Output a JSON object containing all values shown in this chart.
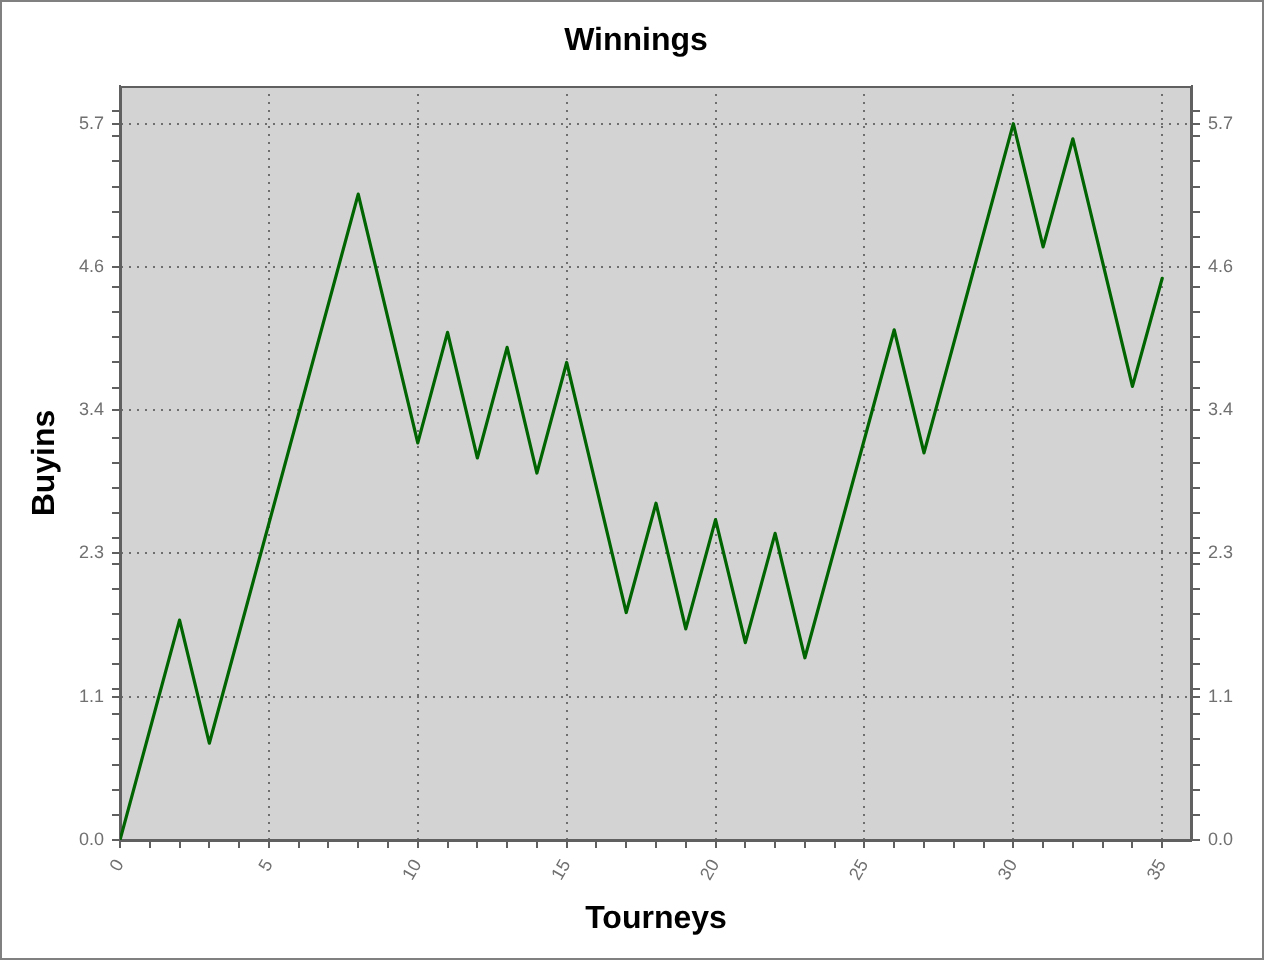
{
  "chart_data": {
    "type": "line",
    "title": "Winnings",
    "xlabel": "Tourneys",
    "ylabel": "Buyins",
    "x": [
      0,
      2,
      3,
      8,
      10,
      11,
      12,
      13,
      14,
      15,
      17,
      18,
      19,
      20,
      21,
      22,
      23,
      26,
      27,
      30,
      31,
      32,
      34,
      35
    ],
    "series": [
      {
        "color": "#006400",
        "values": [
          0,
          1.75,
          0.77,
          5.14,
          3.16,
          4.04,
          3.04,
          3.92,
          2.92,
          3.8,
          1.81,
          2.68,
          1.68,
          2.55,
          1.57,
          2.44,
          1.45,
          4.06,
          3.08,
          5.7,
          4.72,
          5.58,
          3.61,
          4.47
        ]
      }
    ],
    "xlim": [
      0,
      36
    ],
    "xticks": [
      0,
      {
        "value": 1,
        "label": null
      },
      {
        "value": 2,
        "label": null
      },
      {
        "value": 3,
        "label": null
      },
      {
        "value": 4,
        "label": null
      },
      5,
      {
        "value": 6,
        "label": null
      },
      {
        "value": 7,
        "label": null
      },
      {
        "value": 8,
        "label": null
      },
      {
        "value": 9,
        "label": null
      },
      10,
      {
        "value": 11,
        "label": null
      },
      {
        "value": 12,
        "label": null
      },
      {
        "value": 13,
        "label": null
      },
      {
        "value": 14,
        "label": null
      },
      15,
      {
        "value": 16,
        "label": null
      },
      {
        "value": 17,
        "label": null
      },
      {
        "value": 18,
        "label": null
      },
      {
        "value": 19,
        "label": null
      },
      20,
      {
        "value": 21,
        "label": null
      },
      {
        "value": 22,
        "label": null
      },
      {
        "value": 23,
        "label": null
      },
      {
        "value": 24,
        "label": null
      },
      25,
      {
        "value": 26,
        "label": null
      },
      {
        "value": 27,
        "label": null
      },
      {
        "value": 28,
        "label": null
      },
      {
        "value": 29,
        "label": null
      },
      30,
      {
        "value": 31,
        "label": null
      },
      {
        "value": 32,
        "label": null
      },
      {
        "value": 33,
        "label": null
      },
      {
        "value": 34,
        "label": null
      },
      35
    ],
    "ylim": [
      0,
      6
    ],
    "yticks": [
      {
        "value": 0,
        "label": "0.0"
      },
      {
        "value": 0.2,
        "label": null
      },
      {
        "value": 0.4,
        "label": null
      },
      {
        "value": 0.6,
        "label": null
      },
      {
        "value": 0.8,
        "label": null
      },
      {
        "value": 1,
        "label": null
      },
      {
        "value": 1.14,
        "label": "1.1"
      },
      {
        "value": 1.2,
        "label": null
      },
      {
        "value": 1.4,
        "label": null
      },
      {
        "value": 1.6,
        "label": null
      },
      {
        "value": 1.8,
        "label": null
      },
      {
        "value": 2,
        "label": null
      },
      {
        "value": 2.2,
        "label": null
      },
      {
        "value": 2.28,
        "label": "2.3"
      },
      {
        "value": 2.4,
        "label": null
      },
      {
        "value": 2.6,
        "label": null
      },
      {
        "value": 2.8,
        "label": null
      },
      {
        "value": 3,
        "label": null
      },
      {
        "value": 3.2,
        "label": null
      },
      {
        "value": 3.42,
        "label": "3.4"
      },
      {
        "value": 3.6,
        "label": null
      },
      {
        "value": 3.8,
        "label": null
      },
      {
        "value": 4,
        "label": null
      },
      {
        "value": 4.2,
        "label": null
      },
      {
        "value": 4.4,
        "label": null
      },
      {
        "value": 4.56,
        "label": "4.6"
      },
      {
        "value": 4.8,
        "label": null
      },
      {
        "value": 5,
        "label": null
      },
      {
        "value": 5.2,
        "label": null
      },
      {
        "value": 5.4,
        "label": null
      },
      {
        "value": 5.6,
        "label": null
      },
      5.7,
      {
        "value": 5.8,
        "label": null
      }
    ],
    "y2lim": [
      0,
      6
    ],
    "y2ticks": [
      {
        "value": 0,
        "label": "0.0"
      },
      {
        "value": 0.2,
        "label": null
      },
      {
        "value": 0.4,
        "label": null
      },
      {
        "value": 0.6,
        "label": null
      },
      {
        "value": 0.8,
        "label": null
      },
      {
        "value": 1,
        "label": null
      },
      {
        "value": 1.14,
        "label": "1.1"
      },
      {
        "value": 1.2,
        "label": null
      },
      {
        "value": 1.4,
        "label": null
      },
      {
        "value": 1.6,
        "label": null
      },
      {
        "value": 1.8,
        "label": null
      },
      {
        "value": 2,
        "label": null
      },
      {
        "value": 2.2,
        "label": null
      },
      {
        "value": 2.28,
        "label": "2.3"
      },
      {
        "value": 2.4,
        "label": null
      },
      {
        "value": 2.6,
        "label": null
      },
      {
        "value": 2.8,
        "label": null
      },
      {
        "value": 3,
        "label": null
      },
      {
        "value": 3.2,
        "label": null
      },
      {
        "value": 3.42,
        "label": "3.4"
      },
      {
        "value": 3.6,
        "label": null
      },
      {
        "value": 3.8,
        "label": null
      },
      {
        "value": 4,
        "label": null
      },
      {
        "value": 4.2,
        "label": null
      },
      {
        "value": 4.4,
        "label": null
      },
      {
        "value": 4.56,
        "label": "4.6"
      },
      {
        "value": 4.8,
        "label": null
      },
      {
        "value": 5,
        "label": null
      },
      {
        "value": 5.2,
        "label": null
      },
      {
        "value": 5.4,
        "label": null
      },
      {
        "value": 5.6,
        "label": null
      },
      5.7,
      {
        "value": 5.8,
        "label": null
      }
    ],
    "grid": true
  }
}
